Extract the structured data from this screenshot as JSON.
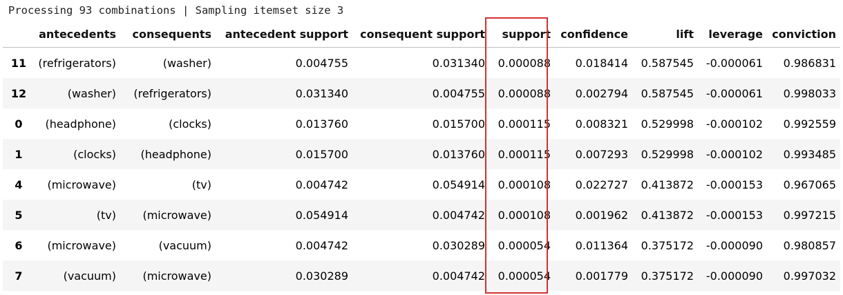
{
  "status_line": "Processing 93 combinations | Sampling itemset size 3",
  "highlight_color": "#d32f2f",
  "table": {
    "columns": [
      "",
      "antecedents",
      "consequents",
      "antecedent support",
      "consequent support",
      "support",
      "confidence",
      "lift",
      "leverage",
      "conviction"
    ],
    "rows": [
      [
        "11",
        "(refrigerators)",
        "(washer)",
        "0.004755",
        "0.031340",
        "0.000088",
        "0.018414",
        "0.587545",
        "-0.000061",
        "0.986831"
      ],
      [
        "12",
        "(washer)",
        "(refrigerators)",
        "0.031340",
        "0.004755",
        "0.000088",
        "0.002794",
        "0.587545",
        "-0.000061",
        "0.998033"
      ],
      [
        "0",
        "(headphone)",
        "(clocks)",
        "0.013760",
        "0.015700",
        "0.000115",
        "0.008321",
        "0.529998",
        "-0.000102",
        "0.992559"
      ],
      [
        "1",
        "(clocks)",
        "(headphone)",
        "0.015700",
        "0.013760",
        "0.000115",
        "0.007293",
        "0.529998",
        "-0.000102",
        "0.993485"
      ],
      [
        "4",
        "(microwave)",
        "(tv)",
        "0.004742",
        "0.054914",
        "0.000108",
        "0.022727",
        "0.413872",
        "-0.000153",
        "0.967065"
      ],
      [
        "5",
        "(tv)",
        "(microwave)",
        "0.054914",
        "0.004742",
        "0.000108",
        "0.001962",
        "0.413872",
        "-0.000153",
        "0.997215"
      ],
      [
        "6",
        "(microwave)",
        "(vacuum)",
        "0.004742",
        "0.030289",
        "0.000054",
        "0.011364",
        "0.375172",
        "-0.000090",
        "0.980857"
      ],
      [
        "7",
        "(vacuum)",
        "(microwave)",
        "0.030289",
        "0.004742",
        "0.000054",
        "0.001779",
        "0.375172",
        "-0.000090",
        "0.997032"
      ]
    ]
  }
}
